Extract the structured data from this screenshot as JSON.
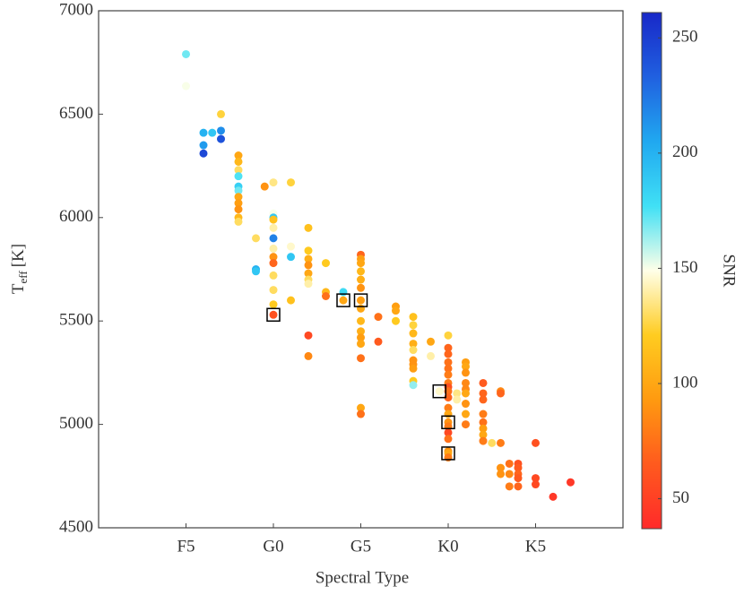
{
  "chart_data": {
    "type": "scatter",
    "x_label": "Spectral Type",
    "y_label": {
      "main": "T",
      "sub": "eff",
      "unit": "[K]"
    },
    "colorbar_label": "SNR",
    "xlim": [
      0,
      30
    ],
    "xticks": [
      {
        "value": 5,
        "label": "F5"
      },
      {
        "value": 10,
        "label": "G0"
      },
      {
        "value": 15,
        "label": "G5"
      },
      {
        "value": 20,
        "label": "K0"
      },
      {
        "value": 25,
        "label": "K5"
      }
    ],
    "ylim": [
      4500,
      7000
    ],
    "yticks": [
      4500,
      5000,
      5500,
      6000,
      6500,
      7000
    ],
    "clim": [
      37,
      261
    ],
    "cticks": [
      50,
      100,
      150,
      200,
      250
    ],
    "colormap": [
      "#ff2a2a",
      "#ff5a1e",
      "#ff9a10",
      "#ffcc20",
      "#ffffe8",
      "#40e0f5",
      "#20a8f0",
      "#2060e0",
      "#1828c8"
    ],
    "x": [
      5,
      5,
      6,
      6,
      6,
      6.5,
      7,
      7,
      7,
      8,
      8,
      8,
      8,
      8,
      8,
      8,
      8,
      8,
      8,
      8,
      9.5,
      9,
      9,
      9,
      10,
      10,
      10,
      10,
      10,
      10,
      10,
      10,
      10,
      10,
      10,
      10,
      10,
      11,
      11,
      11,
      11,
      12,
      12,
      12,
      12,
      12,
      12,
      12,
      12,
      12,
      13,
      13,
      13,
      14,
      14,
      15,
      15,
      15,
      15,
      15,
      15,
      15,
      15,
      15,
      15,
      15,
      15,
      15,
      15,
      15,
      16,
      16,
      17,
      17,
      17,
      18,
      18,
      18,
      18,
      18,
      18,
      18,
      18,
      18,
      18,
      19,
      19,
      19.5,
      20,
      20,
      20,
      20,
      20,
      20,
      20,
      20,
      20,
      20,
      20,
      20,
      20,
      20,
      20,
      20,
      20,
      20,
      20,
      20.5,
      20.5,
      21,
      21,
      21,
      21,
      21,
      21,
      21,
      21,
      21,
      22,
      22,
      22,
      22,
      22,
      22,
      22,
      22,
      22.5,
      23,
      23,
      23,
      23,
      23,
      23.5,
      23.5,
      23.5,
      24,
      24,
      24,
      24,
      24,
      25,
      25,
      25,
      26,
      27
    ],
    "y": [
      6790,
      6636,
      6410,
      6350,
      6310,
      6410,
      6420,
      6380,
      6500,
      6300,
      6270,
      6230,
      6200,
      6150,
      6130,
      6100,
      6070,
      6040,
      6000,
      5980,
      6150,
      5900,
      5750,
      5740,
      6170,
      6020,
      6000,
      5990,
      5950,
      5900,
      5850,
      5810,
      5780,
      5720,
      5650,
      5580,
      5530,
      6170,
      5860,
      5810,
      5600,
      5950,
      5840,
      5800,
      5770,
      5730,
      5700,
      5680,
      5430,
      5330,
      5780,
      5640,
      5620,
      5640,
      5600,
      5820,
      5800,
      5780,
      5740,
      5700,
      5660,
      5600,
      5560,
      5500,
      5450,
      5420,
      5390,
      5320,
      5080,
      5050,
      5520,
      5400,
      5570,
      5550,
      5500,
      5520,
      5480,
      5440,
      5390,
      5360,
      5310,
      5290,
      5270,
      5210,
      5190,
      5400,
      5330,
      5160,
      5430,
      5370,
      5340,
      5300,
      5270,
      5240,
      5200,
      5180,
      5160,
      5130,
      5080,
      5050,
      5010,
      4990,
      4960,
      4930,
      4870,
      4860,
      4840,
      5150,
      5120,
      5300,
      5280,
      5250,
      5200,
      5170,
      5150,
      5100,
      5050,
      5000,
      5200,
      5150,
      5120,
      5050,
      5010,
      4980,
      4950,
      4920,
      4910,
      5160,
      5150,
      4910,
      4790,
      4760,
      4810,
      4700,
      4760,
      4810,
      4790,
      4760,
      4740,
      4700,
      4910,
      4740,
      4710,
      4650,
      4720
    ],
    "snr": [
      170,
      150,
      200,
      210,
      245,
      190,
      215,
      240,
      125,
      100,
      110,
      130,
      175,
      185,
      170,
      100,
      95,
      90,
      110,
      130,
      90,
      130,
      200,
      190,
      135,
      150,
      190,
      115,
      140,
      220,
      140,
      90,
      70,
      130,
      130,
      120,
      60,
      125,
      145,
      190,
      115,
      115,
      120,
      105,
      90,
      100,
      130,
      140,
      55,
      85,
      120,
      110,
      75,
      180,
      100,
      70,
      95,
      100,
      110,
      105,
      90,
      95,
      100,
      110,
      105,
      95,
      100,
      75,
      100,
      75,
      75,
      65,
      95,
      100,
      120,
      115,
      125,
      110,
      105,
      130,
      90,
      90,
      95,
      120,
      165,
      100,
      140,
      145,
      125,
      70,
      70,
      75,
      75,
      80,
      80,
      60,
      75,
      70,
      80,
      100,
      90,
      80,
      55,
      75,
      90,
      100,
      80,
      135,
      140,
      95,
      100,
      90,
      85,
      85,
      100,
      90,
      100,
      80,
      65,
      70,
      70,
      80,
      75,
      95,
      100,
      80,
      130,
      85,
      70,
      80,
      90,
      90,
      75,
      80,
      85,
      60,
      65,
      70,
      65,
      70,
      60,
      55,
      55,
      45,
      45
    ],
    "boxes": {
      "x": [
        10,
        14,
        15,
        19.5,
        20,
        20
      ],
      "y": [
        5530,
        5600,
        5600,
        5160,
        5010,
        4860
      ]
    }
  }
}
